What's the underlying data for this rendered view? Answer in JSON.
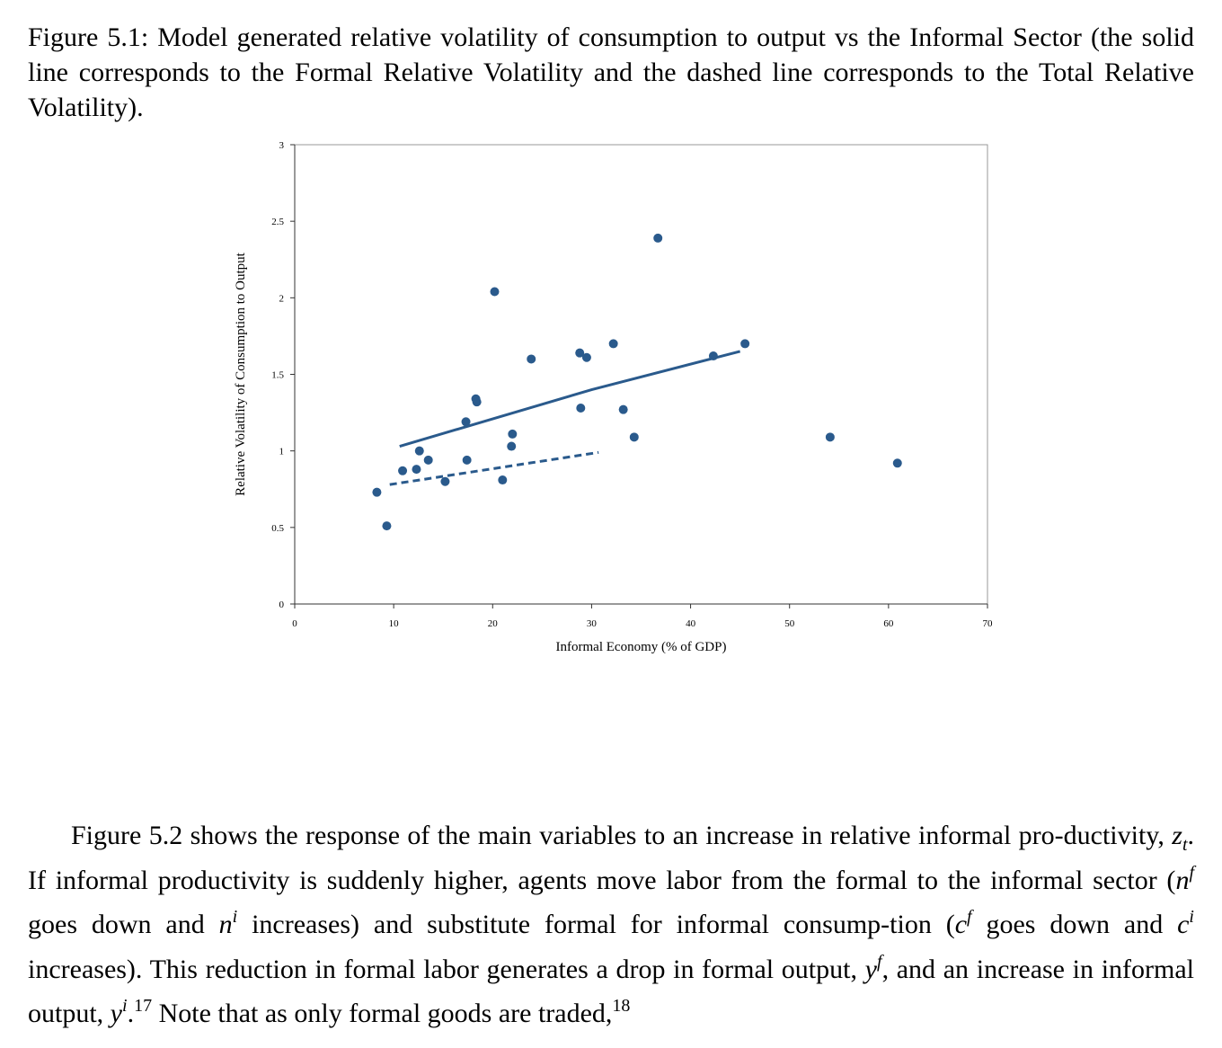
{
  "caption": {
    "text": "Figure 5.1: Model generated relative volatility of consumption to output vs the Informal Sector (the solid line corresponds to the Formal Relative Volatility and the dashed line corresponds to the Total Relative Volatility)."
  },
  "chart_data": {
    "type": "scatter",
    "xlabel": "Informal Economy (% of GDP)",
    "ylabel": "Relative Volatility of Consumption to Output",
    "xlim": [
      0,
      70
    ],
    "ylim": [
      0,
      3
    ],
    "xticks": [
      "0",
      "10",
      "20",
      "30",
      "40",
      "50",
      "60",
      "70"
    ],
    "yticks": [
      "0",
      "0.5",
      "1",
      "1.5",
      "2",
      "2.5",
      "3"
    ],
    "grid": false,
    "legend": "none",
    "colors": {
      "marker": "#2a5a8c",
      "line": "#2a5a8c",
      "axis": "#777777"
    },
    "points": [
      {
        "x": 8.3,
        "y": 0.73
      },
      {
        "x": 9.3,
        "y": 0.51
      },
      {
        "x": 10.9,
        "y": 0.87
      },
      {
        "x": 12.3,
        "y": 0.88
      },
      {
        "x": 12.6,
        "y": 1.0
      },
      {
        "x": 13.5,
        "y": 0.94
      },
      {
        "x": 15.2,
        "y": 0.8
      },
      {
        "x": 17.3,
        "y": 1.19
      },
      {
        "x": 17.4,
        "y": 0.94
      },
      {
        "x": 18.3,
        "y": 1.34
      },
      {
        "x": 18.4,
        "y": 1.32
      },
      {
        "x": 20.2,
        "y": 2.04
      },
      {
        "x": 21.0,
        "y": 0.81
      },
      {
        "x": 21.9,
        "y": 1.03
      },
      {
        "x": 22.0,
        "y": 1.11
      },
      {
        "x": 23.9,
        "y": 1.6
      },
      {
        "x": 28.8,
        "y": 1.64
      },
      {
        "x": 28.9,
        "y": 1.28
      },
      {
        "x": 29.5,
        "y": 1.61
      },
      {
        "x": 32.2,
        "y": 1.7
      },
      {
        "x": 33.2,
        "y": 1.27
      },
      {
        "x": 34.3,
        "y": 1.09
      },
      {
        "x": 36.7,
        "y": 2.39
      },
      {
        "x": 42.3,
        "y": 1.62
      },
      {
        "x": 45.5,
        "y": 1.7
      },
      {
        "x": 54.1,
        "y": 1.09
      },
      {
        "x": 60.9,
        "y": 0.92
      }
    ],
    "series": [
      {
        "style": "solid",
        "x": [
          10.6,
          30.0,
          45.0
        ],
        "y": [
          1.03,
          1.4,
          1.65
        ]
      },
      {
        "style": "dashed",
        "x": [
          9.6,
          30.7
        ],
        "y": [
          0.78,
          0.99
        ]
      }
    ]
  },
  "body": {
    "p1_a": "Figure 5.2 shows the response of the main variables to an increase in relative informal pro-ductivity, ",
    "p1_zt_base": "z",
    "p1_zt_sub": "t",
    "p1_b": ". If informal productivity is suddenly higher, agents move labor from the formal to the informal sector (",
    "nf_base": "n",
    "nf_sup": "f",
    "p1_c": " goes down and ",
    "ni_base": "n",
    "ni_sup": "i",
    "p1_d": " increases) and substitute formal for informal consump-tion (",
    "cf_base": "c",
    "cf_sup": "f",
    "p1_e": " goes down and ",
    "ci_base": "c",
    "ci_sup": "i",
    "p1_f": " increases). This reduction in formal labor generates a drop in formal output, ",
    "yf_base": "y",
    "yf_sup": "f",
    "p1_g": ", and an increase in informal output, ",
    "yi_base": "y",
    "yi_sup": "i",
    "p1_h": ".",
    "fn17": "17",
    "p1_i": " Note that as only formal goods are traded,",
    "fn18": "18"
  }
}
